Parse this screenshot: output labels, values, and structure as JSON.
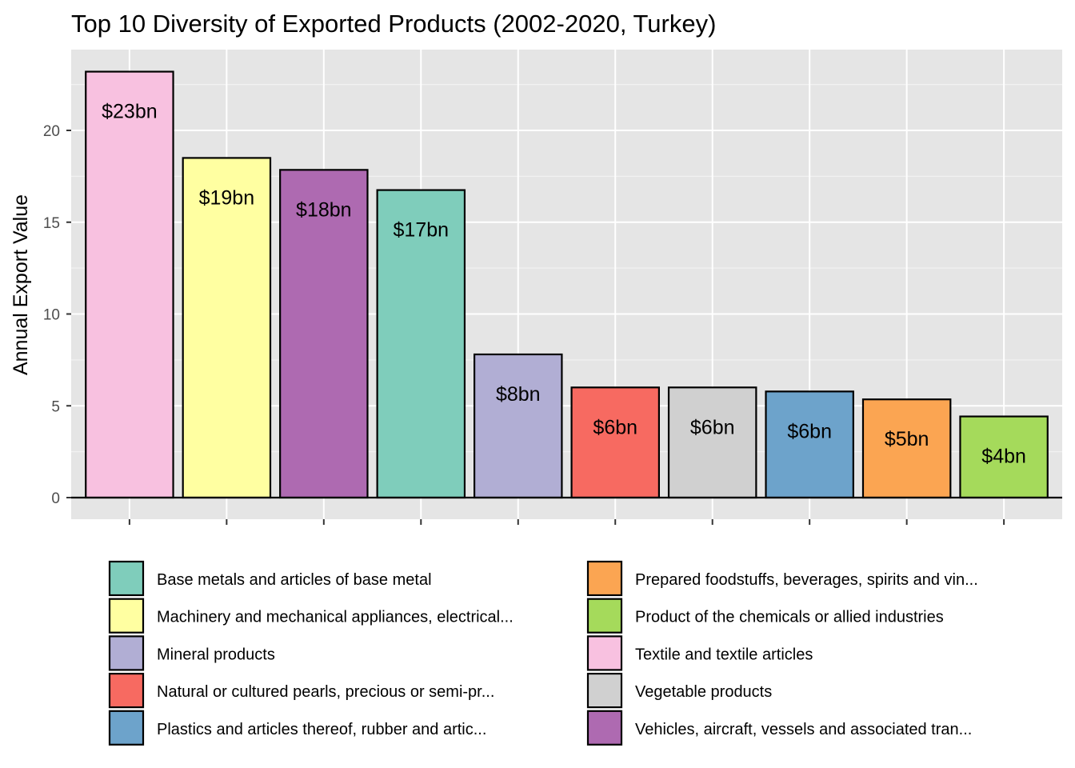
{
  "chart_data": {
    "type": "bar",
    "title": "Top 10 Diversity of Exported Products (2002-2020, Turkey)",
    "xlabel": "",
    "ylabel": "Annual Export Value",
    "ylim": [
      0,
      24.0
    ],
    "yticks": [
      0,
      5,
      10,
      15,
      20
    ],
    "grid": true,
    "legend_position": "bottom",
    "bars": [
      {
        "category": "Textile and textile articles",
        "value": 23.2,
        "label": "$23bn",
        "color": "#F8C1E0"
      },
      {
        "category": "Machinery and mechanical appliances, electrical...",
        "value": 18.5,
        "label": "$19bn",
        "color": "#FFFFA1"
      },
      {
        "category": "Vehicles, aircraft, vessels and associated tran...",
        "value": 17.85,
        "label": "$18bn",
        "color": "#AE6AB1"
      },
      {
        "category": "Base metals and articles of base metal",
        "value": 16.75,
        "label": "$17bn",
        "color": "#7FCDBB"
      },
      {
        "category": "Mineral products",
        "value": 7.8,
        "label": "$8bn",
        "color": "#B1AED4"
      },
      {
        "category": "Natural or cultured pearls, precious or semi-pr...",
        "value": 6.0,
        "label": "$6bn",
        "color": "#F76A61"
      },
      {
        "category": "Vegetable products",
        "value": 6.0,
        "label": "$6bn",
        "color": "#D0D0D0"
      },
      {
        "category": "Plastics and articles thereof, rubber and artic...",
        "value": 5.78,
        "label": "$6bn",
        "color": "#6DA3CB"
      },
      {
        "category": "Prepared foodstuffs, beverages, spirits and vin...",
        "value": 5.35,
        "label": "$5bn",
        "color": "#FBA552"
      },
      {
        "category": "Product of the chemicals or allied industries",
        "value": 4.42,
        "label": "$4bn",
        "color": "#A5DA5B"
      }
    ],
    "legend": [
      {
        "label": "Base metals and articles of base metal",
        "color": "#7FCDBB"
      },
      {
        "label": "Machinery and mechanical appliances, electrical...",
        "color": "#FFFFA1"
      },
      {
        "label": "Mineral products",
        "color": "#B1AED4"
      },
      {
        "label": "Natural or cultured pearls, precious or semi-pr...",
        "color": "#F76A61"
      },
      {
        "label": "Plastics and articles thereof, rubber and artic...",
        "color": "#6DA3CB"
      },
      {
        "label": "Prepared foodstuffs, beverages, spirits and vin...",
        "color": "#FBA552"
      },
      {
        "label": "Product of the chemicals or allied industries",
        "color": "#A5DA5B"
      },
      {
        "label": "Textile and textile articles",
        "color": "#F8C1E0"
      },
      {
        "label": "Vegetable products",
        "color": "#D0D0D0"
      },
      {
        "label": "Vehicles, aircraft, vessels and associated tran...",
        "color": "#AE6AB1"
      }
    ]
  }
}
